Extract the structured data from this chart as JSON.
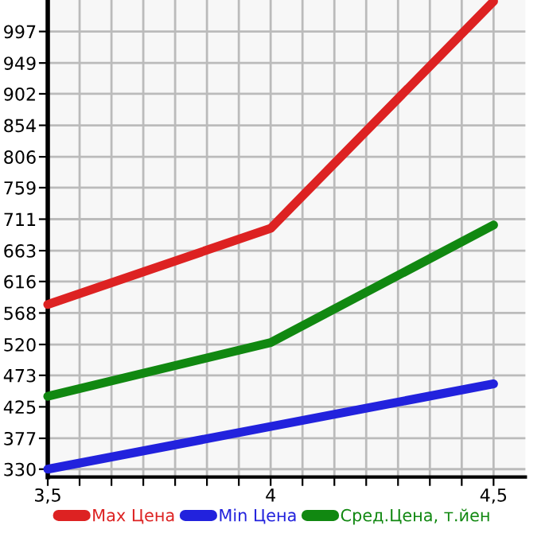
{
  "chart_data": {
    "type": "line",
    "x": [
      3.5,
      4,
      4.5
    ],
    "series": [
      {
        "name": "Max Цена",
        "color": "#dd2222",
        "values": [
          581,
          697,
          1043
        ]
      },
      {
        "name": "Min Цена",
        "color": "#2222dd",
        "values": [
          330,
          395,
          460
        ]
      },
      {
        "name": "Сред.Цена, т.йен",
        "color": "#118811",
        "values": [
          441,
          523,
          702
        ]
      }
    ],
    "xlim": [
      3.5,
      4.5714
    ],
    "xticks": [
      {
        "value": 3.5,
        "label": "3,5"
      },
      {
        "value": 3.5714,
        "label": null
      },
      {
        "value": 3.6429,
        "label": null
      },
      {
        "value": 3.7143,
        "label": null
      },
      {
        "value": 3.7857,
        "label": null
      },
      {
        "value": 3.8571,
        "label": null
      },
      {
        "value": 3.9286,
        "label": null
      },
      {
        "value": 4,
        "label": "4"
      },
      {
        "value": 4.0714,
        "label": null
      },
      {
        "value": 4.1429,
        "label": null
      },
      {
        "value": 4.2143,
        "label": null
      },
      {
        "value": 4.2857,
        "label": null
      },
      {
        "value": 4.3571,
        "label": null
      },
      {
        "value": 4.4286,
        "label": null
      },
      {
        "value": 4.5,
        "label": "4,5"
      }
    ],
    "ylim": [
      318,
      1045
    ],
    "yticks": [
      330,
      377,
      425,
      473,
      520,
      568,
      616,
      663,
      711,
      759,
      806,
      854,
      902,
      949,
      997
    ],
    "grid": true,
    "legend": "bottom",
    "marker": "none",
    "line_style": "solid"
  }
}
